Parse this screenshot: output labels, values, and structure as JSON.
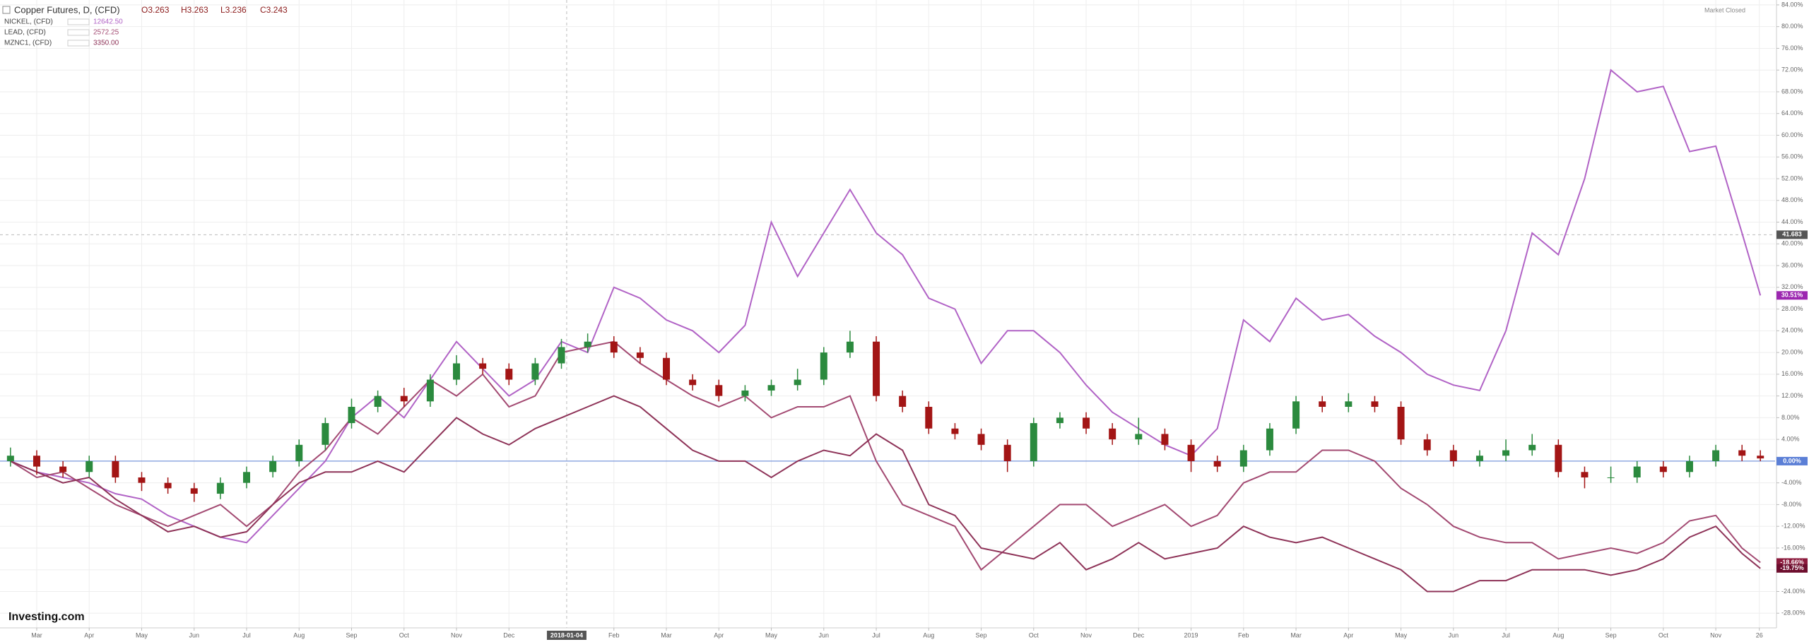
{
  "chart_data": {
    "type": "candlestick",
    "title": "Copper Futures, D, (CFD)",
    "ohlc_labels": [
      "O3.263",
      "H3.263",
      "L3.236",
      "C3.243"
    ],
    "status": "Market Closed",
    "logo": "Investing.com",
    "x": [
      0.5,
      1,
      1.5,
      2,
      2.5,
      3,
      3.5,
      4,
      4.5,
      5,
      5.5,
      6,
      6.5,
      7,
      7.5,
      8,
      8.5,
      9,
      9.5,
      10,
      10.5,
      11,
      11.5,
      12,
      12.5,
      13,
      13.5,
      14,
      14.5,
      15,
      15.5,
      16,
      16.5,
      17,
      17.5,
      18,
      18.5,
      19,
      19.5,
      20,
      20.5,
      21,
      21.5,
      22,
      22.5,
      23,
      23.5,
      24,
      24.5,
      25,
      25.5,
      26,
      26.5,
      27,
      27.5,
      28,
      28.5,
      29,
      29.5,
      30,
      30.5,
      31,
      31.5,
      32,
      32.5,
      33,
      33.5,
      33.85
    ],
    "open": [
      0,
      1,
      -1,
      -2,
      0,
      -3,
      -4,
      -5,
      -6,
      -4,
      -2,
      0,
      3,
      7,
      10,
      12,
      11,
      15,
      18,
      17,
      15,
      18,
      21,
      22,
      20,
      19,
      15,
      14,
      12,
      13,
      14,
      15,
      20,
      22,
      12,
      10,
      6,
      5,
      3,
      0,
      7,
      8,
      6,
      4,
      5,
      3,
      0,
      -1,
      2,
      6,
      11,
      10,
      11,
      10,
      4,
      2,
      0,
      1,
      2,
      3,
      -2,
      -3,
      -3,
      -1,
      -2,
      0,
      2,
      1
    ],
    "high": [
      2.5,
      2,
      0,
      1,
      1,
      -2,
      -3,
      -4,
      -3,
      -1,
      1,
      4,
      8,
      11.5,
      13,
      13.5,
      16,
      19.5,
      19,
      18,
      19,
      22.5,
      23.5,
      23,
      21,
      20,
      16,
      15,
      14,
      15,
      17,
      21,
      24,
      23,
      13,
      11,
      7,
      6,
      4,
      8,
      9,
      9,
      7,
      8,
      6,
      4,
      1,
      3,
      7,
      12,
      12,
      12.5,
      12,
      11,
      5,
      3,
      2,
      4,
      5,
      4,
      -1,
      -1,
      0,
      0,
      1,
      3,
      3,
      2
    ],
    "low": [
      -1,
      -2.5,
      -3,
      -3,
      -4,
      -5.5,
      -6,
      -7.5,
      -7,
      -5,
      -3,
      -1,
      2,
      6,
      9,
      10,
      10,
      14,
      16,
      14,
      14,
      17,
      20,
      19,
      18,
      14,
      13,
      11,
      11,
      12,
      13,
      14,
      19,
      11,
      9,
      5,
      4,
      2,
      -2,
      -1,
      6,
      5,
      3,
      3,
      2,
      -2,
      -2,
      -2,
      1,
      5,
      9,
      9,
      9,
      3,
      1,
      -1,
      -1,
      0,
      1,
      -3,
      -5,
      -4,
      -4,
      -3,
      -3,
      -1,
      0,
      0
    ],
    "close": [
      1,
      -1,
      -2,
      0,
      -3,
      -4,
      -5,
      -6,
      -4,
      -2,
      0,
      3,
      7,
      10,
      12,
      11,
      15,
      18,
      17,
      15,
      18,
      21,
      22,
      20,
      19,
      15,
      14,
      12,
      13,
      14,
      15,
      20,
      22,
      12,
      10,
      6,
      5,
      3,
      0,
      7,
      8,
      6,
      4,
      5,
      3,
      0,
      -1,
      2,
      6,
      11,
      10,
      11,
      10,
      4,
      2,
      0,
      1,
      2,
      3,
      -2,
      -3,
      -3,
      -1,
      -2,
      0,
      2,
      1,
      0.5
    ],
    "up_color": "#2b8a3e",
    "down_color": "#a31515",
    "series": [
      {
        "name": "NICKEL, (CFD)",
        "price": "12642.50",
        "color": "#b163c6",
        "tag_color": "#9c27b0",
        "last_label": "30.51%",
        "values": [
          0,
          -2,
          -3,
          -4,
          -6,
          -7,
          -10,
          -12,
          -14,
          -15,
          -10,
          -5,
          0,
          8,
          12,
          8,
          15,
          22,
          17,
          12,
          15,
          22,
          20,
          32,
          30,
          26,
          24,
          20,
          25,
          44,
          34,
          42,
          50,
          42,
          38,
          30,
          28,
          18,
          24,
          24,
          20,
          14,
          9,
          6,
          3,
          1,
          6,
          26,
          22,
          30,
          26,
          27,
          23,
          20,
          16,
          14,
          13,
          24,
          42,
          38,
          52,
          72,
          68,
          69,
          57,
          58,
          42,
          30.51
        ]
      },
      {
        "name": "LEAD, (CFD)",
        "price": "2572.25",
        "color": "#a34a72",
        "tag_color": "#8b1a3c",
        "last_label": "-18.66%",
        "values": [
          0,
          -3,
          -2,
          -5,
          -8,
          -10,
          -12,
          -10,
          -8,
          -12,
          -8,
          -2,
          2,
          8,
          5,
          10,
          15,
          12,
          16,
          10,
          12,
          20,
          21,
          22,
          18,
          15,
          12,
          10,
          12,
          8,
          10,
          10,
          12,
          0,
          -8,
          -10,
          -12,
          -20,
          -16,
          -12,
          -8,
          -8,
          -12,
          -10,
          -8,
          -12,
          -10,
          -4,
          -2,
          -2,
          2,
          2,
          0,
          -5,
          -8,
          -12,
          -14,
          -15,
          -15,
          -18,
          -17,
          -16,
          -17,
          -15,
          -11,
          -10,
          -16,
          -18.66
        ]
      },
      {
        "name": "MZNC1, (CFD)",
        "price": "3350.00",
        "color": "#8e3358",
        "tag_color": "#6d0d2d",
        "last_label": "-19.75%",
        "values": [
          0,
          -2,
          -4,
          -3,
          -7,
          -10,
          -13,
          -12,
          -14,
          -13,
          -8,
          -4,
          -2,
          -2,
          0,
          -2,
          3,
          8,
          5,
          3,
          6,
          8,
          10,
          12,
          10,
          6,
          2,
          0,
          0,
          -3,
          0,
          2,
          1,
          5,
          2,
          -8,
          -10,
          -16,
          -17,
          -18,
          -15,
          -20,
          -18,
          -15,
          -18,
          -17,
          -16,
          -12,
          -14,
          -15,
          -14,
          -16,
          -18,
          -20,
          -24,
          -24,
          -22,
          -22,
          -20,
          -20,
          -20,
          -21,
          -20,
          -18,
          -14,
          -12,
          -17,
          -19.75
        ]
      }
    ],
    "baseline": {
      "value": 0,
      "label": "0.00%",
      "color": "#5b7fd6"
    },
    "crosshair": {
      "x": {
        "value": 11.1,
        "label": "2018-01-04"
      },
      "y": {
        "value": 41.683,
        "label": "41.683"
      }
    },
    "xlim": [
      0.3,
      34.13
    ],
    "ylim": [
      -30.7,
      84.9
    ],
    "xticks": [
      {
        "value": 1,
        "label": "Mar"
      },
      {
        "value": 2,
        "label": "Apr"
      },
      {
        "value": 3,
        "label": "May"
      },
      {
        "value": 4,
        "label": "Jun"
      },
      {
        "value": 5,
        "label": "Jul"
      },
      {
        "value": 6,
        "label": "Aug"
      },
      {
        "value": 7,
        "label": "Sep"
      },
      {
        "value": 8,
        "label": "Oct"
      },
      {
        "value": 9,
        "label": "Nov"
      },
      {
        "value": 10,
        "label": "Dec"
      },
      {
        "value": 12,
        "label": "Feb"
      },
      {
        "value": 13,
        "label": "Mar"
      },
      {
        "value": 14,
        "label": "Apr"
      },
      {
        "value": 15,
        "label": "May"
      },
      {
        "value": 16,
        "label": "Jun"
      },
      {
        "value": 17,
        "label": "Jul"
      },
      {
        "value": 18,
        "label": "Aug"
      },
      {
        "value": 19,
        "label": "Sep"
      },
      {
        "value": 20,
        "label": "Oct"
      },
      {
        "value": 21,
        "label": "Nov"
      },
      {
        "value": 22,
        "label": "Dec"
      },
      {
        "value": 23,
        "label": "2019"
      },
      {
        "value": 24,
        "label": "Feb"
      },
      {
        "value": 25,
        "label": "Mar"
      },
      {
        "value": 26,
        "label": "Apr"
      },
      {
        "value": 27,
        "label": "May"
      },
      {
        "value": 28,
        "label": "Jun"
      },
      {
        "value": 29,
        "label": "Jul"
      },
      {
        "value": 30,
        "label": "Aug"
      },
      {
        "value": 31,
        "label": "Sep"
      },
      {
        "value": 32,
        "label": "Oct"
      },
      {
        "value": 33,
        "label": "Nov"
      },
      {
        "value": 33.83,
        "label": "26"
      }
    ],
    "yticks": [
      {
        "value": -28,
        "label": "-28.00%"
      },
      {
        "value": -24,
        "label": "-24.00%"
      },
      {
        "value": -20,
        "label": "-20.00%"
      },
      {
        "value": -16,
        "label": "-16.00%"
      },
      {
        "value": -12,
        "label": "-12.00%"
      },
      {
        "value": -8,
        "label": "-8.00%"
      },
      {
        "value": -4,
        "label": "-4.00%"
      },
      {
        "value": 0,
        "label": "0.00%"
      },
      {
        "value": 4,
        "label": "4.00%"
      },
      {
        "value": 8,
        "label": "8.00%"
      },
      {
        "value": 12,
        "label": "12.00%"
      },
      {
        "value": 16,
        "label": "16.00%"
      },
      {
        "value": 20,
        "label": "20.00%"
      },
      {
        "value": 24,
        "label": "24.00%"
      },
      {
        "value": 28,
        "label": "28.00%"
      },
      {
        "value": 32,
        "label": "32.00%"
      },
      {
        "value": 36,
        "label": "36.00%"
      },
      {
        "value": 40,
        "label": "40.00%"
      },
      {
        "value": 44,
        "label": "44.00%"
      },
      {
        "value": 48,
        "label": "48.00%"
      },
      {
        "value": 52,
        "label": "52.00%"
      },
      {
        "value": 56,
        "label": "56.00%"
      },
      {
        "value": 60,
        "label": "60.00%"
      },
      {
        "value": 64,
        "label": "64.00%"
      },
      {
        "value": 68,
        "label": "68.00%"
      },
      {
        "value": 72,
        "label": "72.00%"
      },
      {
        "value": 76,
        "label": "76.00%"
      },
      {
        "value": 80,
        "label": "80.00%"
      },
      {
        "value": 84,
        "label": "84.00%"
      }
    ],
    "grid": true
  }
}
